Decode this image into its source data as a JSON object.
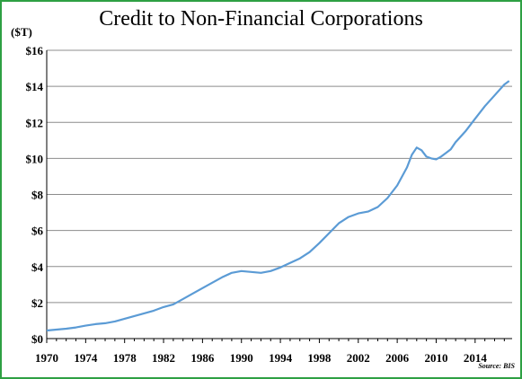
{
  "chart_data": {
    "type": "line",
    "title": "Credit to Non-Financial Corporations",
    "y_unit_label": "($T)",
    "source_note": "Source: BIS",
    "xlim": [
      1970,
      2017.8
    ],
    "ylim": [
      0,
      16
    ],
    "x_ticks": [
      1970,
      1974,
      1978,
      1982,
      1986,
      1990,
      1994,
      1998,
      2002,
      2006,
      2010,
      2014
    ],
    "x_tick_labels": [
      "1970",
      "1974",
      "1978",
      "1982",
      "1986",
      "1990",
      "1994",
      "1998",
      "2002",
      "2006",
      "2010",
      "2014"
    ],
    "y_ticks": [
      0,
      2,
      4,
      6,
      8,
      10,
      12,
      14,
      16
    ],
    "y_tick_labels": [
      "$0",
      "$2",
      "$4",
      "$6",
      "$8",
      "$10",
      "$12",
      "$14",
      "$16"
    ],
    "grid": "horizontal",
    "series": [
      {
        "color": "#5b9bd5",
        "x": [
          1970,
          1971,
          1972,
          1973,
          1974,
          1975,
          1976,
          1977,
          1978,
          1979,
          1980,
          1981,
          1982,
          1983,
          1984,
          1985,
          1986,
          1987,
          1988,
          1989,
          1990,
          1991,
          1992,
          1993,
          1994,
          1995,
          1996,
          1997,
          1998,
          1999,
          2000,
          2001,
          2002,
          2003,
          2004,
          2005,
          2006,
          2007,
          2007.5,
          2008,
          2008.5,
          2009,
          2009.5,
          2010,
          2010.5,
          2011,
          2011.5,
          2012,
          2013,
          2014,
          2015,
          2016,
          2017,
          2017.5
        ],
        "y": [
          0.45,
          0.5,
          0.55,
          0.62,
          0.72,
          0.8,
          0.85,
          0.95,
          1.1,
          1.25,
          1.4,
          1.55,
          1.75,
          1.9,
          2.2,
          2.5,
          2.8,
          3.1,
          3.4,
          3.65,
          3.75,
          3.7,
          3.65,
          3.75,
          3.95,
          4.2,
          4.45,
          4.8,
          5.3,
          5.85,
          6.4,
          6.75,
          6.95,
          7.05,
          7.3,
          7.8,
          8.5,
          9.5,
          10.2,
          10.6,
          10.45,
          10.1,
          10.0,
          9.95,
          10.1,
          10.3,
          10.5,
          10.9,
          11.5,
          12.2,
          12.9,
          13.5,
          14.1,
          14.3
        ]
      }
    ]
  }
}
